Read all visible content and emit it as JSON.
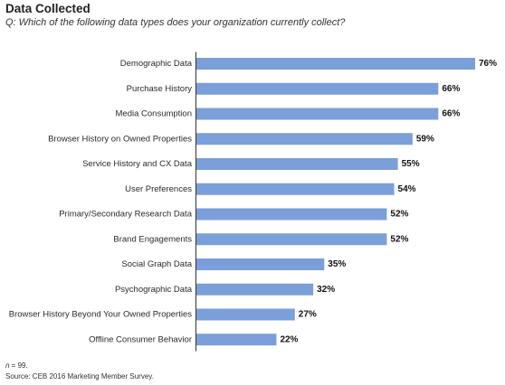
{
  "header": {
    "title": "Data Collected",
    "question": "Q: Which of the following data types does your organization currently collect?"
  },
  "footnotes": {
    "n_letter": "n",
    "n_rest": " = 99.",
    "source": "Source: CEB 2016 Marketing Member Survey."
  },
  "colors": {
    "bar": "#7b9fd8",
    "axis": "#333333"
  },
  "chart_data": {
    "type": "bar",
    "orientation": "horizontal",
    "title": "Data Collected",
    "subtitle": "Q: Which of the following data types does your organization currently collect?",
    "categories": [
      "Demographic Data",
      "Purchase History",
      "Media Consumption",
      "Browser History on Owned Properties",
      "Service History and CX Data",
      "User Preferences",
      "Primary/Secondary Research Data",
      "Brand Engagements",
      "Social Graph Data",
      "Psychographic Data",
      "Browser History Beyond Your Owned Properties",
      "Offline Consumer Behavior"
    ],
    "values": [
      76,
      66,
      66,
      59,
      55,
      54,
      52,
      52,
      35,
      32,
      27,
      22
    ],
    "value_labels": [
      "76%",
      "66%",
      "66%",
      "59%",
      "55%",
      "54%",
      "52%",
      "52%",
      "35%",
      "32%",
      "27%",
      "22%"
    ],
    "unit": "%",
    "xlim": [
      0,
      76
    ],
    "grid": false,
    "legend": "none"
  }
}
